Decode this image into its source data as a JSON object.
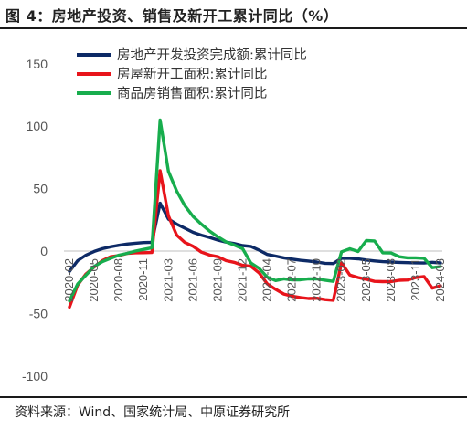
{
  "header": {
    "title": "图 4：房地产投资、销售及新开工累计同比（%）"
  },
  "footer": {
    "source": "资料来源：Wind、国家统计局、中原证券研究所"
  },
  "chart_data": {
    "type": "line",
    "title": "",
    "xlabel": "",
    "ylabel": "",
    "ylim": [
      -100,
      150
    ],
    "y_ticks": [
      150,
      100,
      50,
      0,
      -50,
      -100
    ],
    "grid": false,
    "legend_position": "top",
    "x_tick_labels": [
      "2020-02",
      "2020-05",
      "2020-08",
      "2020-11",
      "2021-03",
      "2021-06",
      "2021-09",
      "2021-12",
      "2022-04",
      "2022-07",
      "2022-10",
      "2023-02",
      "2023-05",
      "2023-08",
      "2023-11",
      "2024-03"
    ],
    "x": [
      "2020-02",
      "2020-03",
      "2020-04",
      "2020-05",
      "2020-06",
      "2020-07",
      "2020-08",
      "2020-09",
      "2020-10",
      "2020-11",
      "2020-12",
      "2021-02",
      "2021-03",
      "2021-04",
      "2021-05",
      "2021-06",
      "2021-07",
      "2021-08",
      "2021-09",
      "2021-10",
      "2021-11",
      "2021-12",
      "2022-02",
      "2022-03",
      "2022-04",
      "2022-05",
      "2022-06",
      "2022-07",
      "2022-08",
      "2022-09",
      "2022-10",
      "2022-11",
      "2022-12",
      "2023-02",
      "2023-03",
      "2023-04",
      "2023-05",
      "2023-06",
      "2023-07",
      "2023-08",
      "2023-09",
      "2023-10",
      "2023-11",
      "2023-12",
      "2024-02",
      "2024-03"
    ],
    "series": [
      {
        "name": "房地产开发投资完成额:累计同比",
        "color": "#0d2a66",
        "values": [
          -16.3,
          -7.7,
          -3.3,
          -0.3,
          1.9,
          3.4,
          4.6,
          5.6,
          6.3,
          6.8,
          7.0,
          38.3,
          25.6,
          21.6,
          18.3,
          15.0,
          12.7,
          10.9,
          8.8,
          7.2,
          6.0,
          4.4,
          3.7,
          0.7,
          -2.7,
          -4.0,
          -5.4,
          -6.4,
          -7.4,
          -8.0,
          -8.8,
          -9.8,
          -10.0,
          -5.7,
          -5.8,
          -6.2,
          -7.2,
          -7.9,
          -8.5,
          -8.8,
          -9.1,
          -9.3,
          -9.4,
          -9.6,
          -9.0,
          -9.5
        ]
      },
      {
        "name": "房屋新开工面积:累计同比",
        "color": "#e8141b",
        "values": [
          -44.9,
          -27.2,
          -18.4,
          -12.8,
          -7.6,
          -4.5,
          -3.6,
          -1.9,
          -1.4,
          -1.3,
          -1.2,
          64.3,
          28.2,
          12.8,
          6.9,
          3.8,
          -0.9,
          -3.2,
          -4.5,
          -7.7,
          -9.1,
          -11.4,
          -12.2,
          -17.5,
          -26.3,
          -30.6,
          -34.4,
          -36.1,
          -37.2,
          -38.0,
          -37.8,
          -38.9,
          -39.4,
          -9.4,
          -19.2,
          -21.2,
          -22.6,
          -24.3,
          -24.5,
          -24.4,
          -23.4,
          -23.2,
          -21.2,
          -20.4,
          -29.7,
          -27.8
        ]
      },
      {
        "name": "商品房销售面积:累计同比",
        "color": "#17ad4d",
        "values": [
          -39.9,
          -26.3,
          -19.3,
          -12.3,
          -8.4,
          -5.8,
          -3.3,
          -1.8,
          0.0,
          1.3,
          2.6,
          104.9,
          63.8,
          48.1,
          36.3,
          27.7,
          21.5,
          15.9,
          11.3,
          7.3,
          4.8,
          1.9,
          -9.6,
          -13.8,
          -20.9,
          -23.6,
          -22.2,
          -23.1,
          -23.0,
          -22.2,
          -22.3,
          -23.3,
          -24.3,
          -0.6,
          1.8,
          -0.4,
          8.4,
          8.1,
          -1.4,
          -1.5,
          -4.5,
          -5.4,
          -5.4,
          -5.8,
          -13.3,
          -12.4
        ]
      }
    ]
  }
}
